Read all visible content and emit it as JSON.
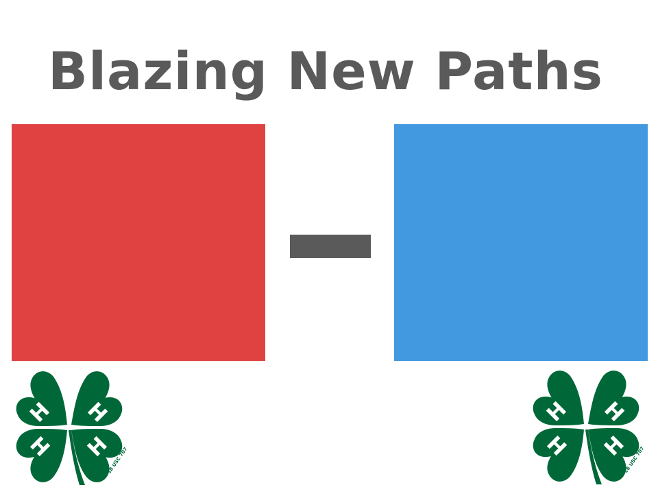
{
  "slide": {
    "title": "Blazing New Paths"
  },
  "logo": {
    "text": "H",
    "emblem_label": "18 USC 707"
  },
  "colors": {
    "title": "#5a5a5a",
    "left_square": "#e04242",
    "right_square": "#4299e0",
    "dash": "#5a5a5a",
    "clover": "#006838"
  }
}
